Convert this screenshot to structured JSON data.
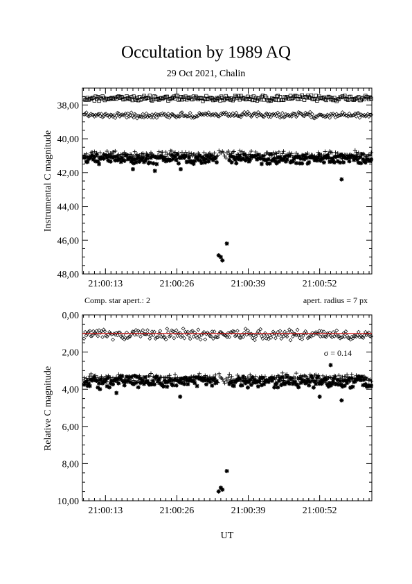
{
  "title": "Occultation by 1989 AQ",
  "subtitle": "29 Oct 2021, Chalin",
  "top_panel": {
    "ylabel": "Instrumental C magnitude",
    "note_left": "Comp. star apert.: 2",
    "note_right": "apert. radius = 7 px"
  },
  "bottom_panel": {
    "ylabel": "Relative C magnitude",
    "xlabel": "UT",
    "sigma_label": "σ = 0.14"
  },
  "colors": {
    "axis": "#000000",
    "fit_line": "#cc0000"
  },
  "chart_data": [
    {
      "type": "scatter",
      "name": "instrumental",
      "x_tick_labels": [
        "21:00:13",
        "21:00:26",
        "21:00:39",
        "21:00:52"
      ],
      "x_tick_seconds": [
        13,
        26,
        39,
        52
      ],
      "xlim": [
        8.8,
        61.5
      ],
      "y_tick_labels": [
        "38,00",
        "40,00",
        "42,00",
        "44,00",
        "46,00",
        "48,00"
      ],
      "y_ticks": [
        38,
        40,
        42,
        44,
        46,
        48
      ],
      "ylim": [
        37.0,
        48.0
      ],
      "y_inverted": true,
      "grid": false,
      "series": [
        {
          "marker": "square",
          "mean": 37.6,
          "jitter": 0.13
        },
        {
          "marker": "diamond",
          "mean": 38.6,
          "jitter": 0.13
        },
        {
          "marker": "plus",
          "mean": 40.95,
          "jitter": 0.18
        },
        {
          "marker": "asterisk",
          "mean": 41.2,
          "jitter": 0.22,
          "event_points": [
            [
              33.6,
              46.9
            ],
            [
              34.0,
              47.0
            ],
            [
              34.3,
              47.2
            ],
            [
              35.1,
              46.2
            ]
          ],
          "outliers": [
            [
              18.0,
              41.8
            ],
            [
              22.0,
              41.9
            ],
            [
              26.7,
              41.8
            ],
            [
              56.0,
              42.4
            ]
          ]
        }
      ]
    },
    {
      "type": "scatter",
      "name": "relative",
      "x_tick_labels": [
        "21:00:13",
        "21:00:26",
        "21:00:39",
        "21:00:52"
      ],
      "x_tick_seconds": [
        13,
        26,
        39,
        52
      ],
      "xlim": [
        8.8,
        61.5
      ],
      "y_tick_labels": [
        "0,00",
        "2,00",
        "4,00",
        "6,00",
        "8,00",
        "10,00"
      ],
      "y_ticks": [
        0,
        2,
        4,
        6,
        8,
        10
      ],
      "ylim": [
        0,
        10
      ],
      "y_inverted": true,
      "grid": false,
      "fit_level": 1.0,
      "series": [
        {
          "marker": "diamond",
          "mean": 1.05,
          "jitter": 0.22
        },
        {
          "marker": "plus",
          "mean": 3.4,
          "jitter": 0.2
        },
        {
          "marker": "asterisk",
          "mean": 3.6,
          "jitter": 0.24,
          "event_points": [
            [
              33.6,
              9.5
            ],
            [
              34.0,
              9.3
            ],
            [
              34.3,
              9.4
            ],
            [
              35.1,
              8.4
            ]
          ],
          "outliers": [
            [
              12.0,
              4.0
            ],
            [
              15.0,
              4.2
            ],
            [
              26.6,
              4.4
            ],
            [
              52.0,
              4.4
            ],
            [
              54.0,
              2.7
            ],
            [
              56.0,
              4.6
            ]
          ]
        }
      ]
    }
  ]
}
